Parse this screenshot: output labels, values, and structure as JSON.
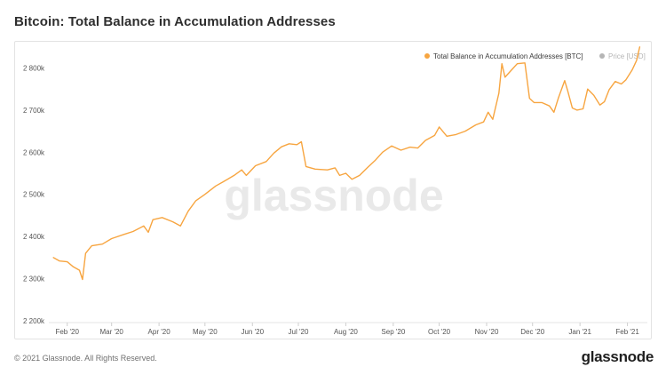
{
  "page": {
    "title": "Bitcoin: Total Balance in Accumulation Addresses",
    "copyright": "© 2021 Glassnode. All Rights Reserved.",
    "logo": "glassnode",
    "watermark": "glassnode"
  },
  "chart_data": {
    "type": "line",
    "title": "Bitcoin: Total Balance in Accumulation Addresses",
    "xlabel": "",
    "ylabel": "",
    "x_ticks": [
      "Feb '20",
      "Mar '20",
      "Apr '20",
      "May '20",
      "Jun '20",
      "Jul '20",
      "Aug '20",
      "Sep '20",
      "Oct '20",
      "Nov '20",
      "Dec '20",
      "Jan '21",
      "Feb '21"
    ],
    "y_ticks": [
      "2 200k",
      "2 300k",
      "2 400k",
      "2 500k",
      "2 600k",
      "2 700k",
      "2 800k"
    ],
    "ylim": [
      2200000,
      2820000
    ],
    "xlim": [
      "2020-01-20",
      "2021-02-14"
    ],
    "grid": false,
    "legend_position": "top-right",
    "colors": {
      "balance": "#f7a540",
      "price": "#b5b5b5"
    },
    "series": [
      {
        "name": "Total Balance in Accumulation Addresses [BTC]",
        "color": "#f7a540",
        "visible": true,
        "points": [
          [
            "2020-01-23",
            2350000
          ],
          [
            "2020-01-27",
            2342000
          ],
          [
            "2020-02-01",
            2340000
          ],
          [
            "2020-02-05",
            2328000
          ],
          [
            "2020-02-09",
            2320000
          ],
          [
            "2020-02-11",
            2298000
          ],
          [
            "2020-02-13",
            2360000
          ],
          [
            "2020-02-17",
            2378000
          ],
          [
            "2020-02-24",
            2382000
          ],
          [
            "2020-03-01",
            2395000
          ],
          [
            "2020-03-09",
            2405000
          ],
          [
            "2020-03-15",
            2412000
          ],
          [
            "2020-03-22",
            2425000
          ],
          [
            "2020-03-25",
            2410000
          ],
          [
            "2020-03-28",
            2440000
          ],
          [
            "2020-04-03",
            2445000
          ],
          [
            "2020-04-10",
            2435000
          ],
          [
            "2020-04-15",
            2425000
          ],
          [
            "2020-04-20",
            2460000
          ],
          [
            "2020-04-25",
            2485000
          ],
          [
            "2020-05-01",
            2500000
          ],
          [
            "2020-05-08",
            2520000
          ],
          [
            "2020-05-13",
            2530000
          ],
          [
            "2020-05-20",
            2545000
          ],
          [
            "2020-05-25",
            2558000
          ],
          [
            "2020-05-28",
            2545000
          ],
          [
            "2020-06-03",
            2568000
          ],
          [
            "2020-06-10",
            2578000
          ],
          [
            "2020-06-15",
            2598000
          ],
          [
            "2020-06-20",
            2613000
          ],
          [
            "2020-06-25",
            2620000
          ],
          [
            "2020-06-30",
            2618000
          ],
          [
            "2020-07-03",
            2625000
          ],
          [
            "2020-07-06",
            2566000
          ],
          [
            "2020-07-12",
            2560000
          ],
          [
            "2020-07-20",
            2558000
          ],
          [
            "2020-07-25",
            2563000
          ],
          [
            "2020-07-28",
            2545000
          ],
          [
            "2020-08-01",
            2550000
          ],
          [
            "2020-08-05",
            2536000
          ],
          [
            "2020-08-10",
            2545000
          ],
          [
            "2020-08-15",
            2563000
          ],
          [
            "2020-08-20",
            2580000
          ],
          [
            "2020-08-25",
            2600000
          ],
          [
            "2020-08-31",
            2615000
          ],
          [
            "2020-09-06",
            2605000
          ],
          [
            "2020-09-12",
            2612000
          ],
          [
            "2020-09-17",
            2610000
          ],
          [
            "2020-09-22",
            2628000
          ],
          [
            "2020-09-28",
            2640000
          ],
          [
            "2020-10-01",
            2660000
          ],
          [
            "2020-10-06",
            2638000
          ],
          [
            "2020-10-12",
            2642000
          ],
          [
            "2020-10-18",
            2650000
          ],
          [
            "2020-10-25",
            2665000
          ],
          [
            "2020-10-30",
            2672000
          ],
          [
            "2020-11-02",
            2695000
          ],
          [
            "2020-11-05",
            2678000
          ],
          [
            "2020-11-09",
            2740000
          ],
          [
            "2020-11-11",
            2810000
          ],
          [
            "2020-11-13",
            2778000
          ],
          [
            "2020-11-18",
            2798000
          ],
          [
            "2020-11-21",
            2810000
          ],
          [
            "2020-11-26",
            2812000
          ],
          [
            "2020-11-29",
            2728000
          ],
          [
            "2020-12-02",
            2718000
          ],
          [
            "2020-12-07",
            2718000
          ],
          [
            "2020-12-12",
            2710000
          ],
          [
            "2020-12-15",
            2695000
          ],
          [
            "2020-12-18",
            2730000
          ],
          [
            "2020-12-22",
            2770000
          ],
          [
            "2020-12-24",
            2745000
          ],
          [
            "2020-12-27",
            2705000
          ],
          [
            "2020-12-30",
            2700000
          ],
          [
            "2021-01-03",
            2703000
          ],
          [
            "2021-01-06",
            2750000
          ],
          [
            "2021-01-10",
            2735000
          ],
          [
            "2021-01-14",
            2712000
          ],
          [
            "2021-01-17",
            2720000
          ],
          [
            "2021-01-20",
            2748000
          ],
          [
            "2021-01-24",
            2768000
          ],
          [
            "2021-01-28",
            2762000
          ],
          [
            "2021-01-31",
            2772000
          ],
          [
            "2021-02-04",
            2795000
          ],
          [
            "2021-02-07",
            2818000
          ],
          [
            "2021-02-09",
            2850000
          ]
        ]
      },
      {
        "name": "Price [USD]",
        "color": "#b5b5b5",
        "visible": false,
        "points": []
      }
    ]
  }
}
